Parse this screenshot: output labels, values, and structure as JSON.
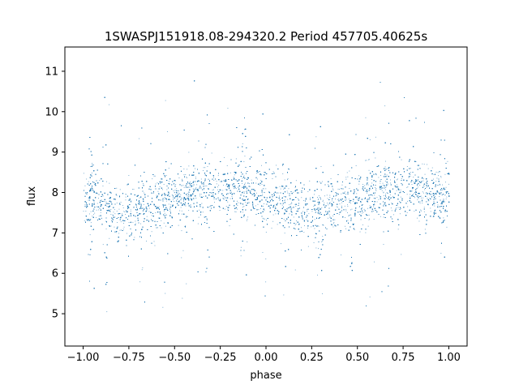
{
  "chart_data": {
    "type": "scatter",
    "title": "1SWASPJ151918.08-294320.2 Period 457705.40625s",
    "xlabel": "phase",
    "ylabel": "flux",
    "xlim": [
      -1.1,
      1.1
    ],
    "ylim": [
      4.2,
      11.6
    ],
    "xticks": [
      "−1.00",
      "−0.75",
      "−0.50",
      "−0.25",
      "0.00",
      "0.25",
      "0.50",
      "0.75",
      "1.00"
    ],
    "xtick_values": [
      -1.0,
      -0.75,
      -0.5,
      -0.25,
      0.0,
      0.25,
      0.5,
      0.75,
      1.0
    ],
    "yticks": [
      "5",
      "6",
      "7",
      "8",
      "9",
      "10",
      "11"
    ],
    "ytick_values": [
      5,
      6,
      7,
      8,
      9,
      10,
      11
    ],
    "grid": false,
    "marker_color": "#1f77b4",
    "series": [
      {
        "x_range": [
          -1.0,
          1.0
        ],
        "profile_phase": [
          -1.0,
          -0.9,
          -0.8,
          -0.7,
          -0.6,
          -0.5,
          -0.4,
          -0.3,
          -0.2,
          -0.1,
          0.0,
          0.1,
          0.2,
          0.3,
          0.4,
          0.5,
          0.6,
          0.7,
          0.8,
          0.9,
          1.0
        ],
        "profile_flux": [
          7.9,
          7.75,
          7.5,
          7.55,
          7.75,
          7.9,
          8.0,
          8.05,
          8.1,
          8.05,
          7.9,
          7.75,
          7.5,
          7.55,
          7.75,
          7.9,
          8.0,
          8.05,
          8.1,
          8.05,
          7.9
        ],
        "flux_range": [
          4.5,
          11.2
        ]
      }
    ]
  }
}
